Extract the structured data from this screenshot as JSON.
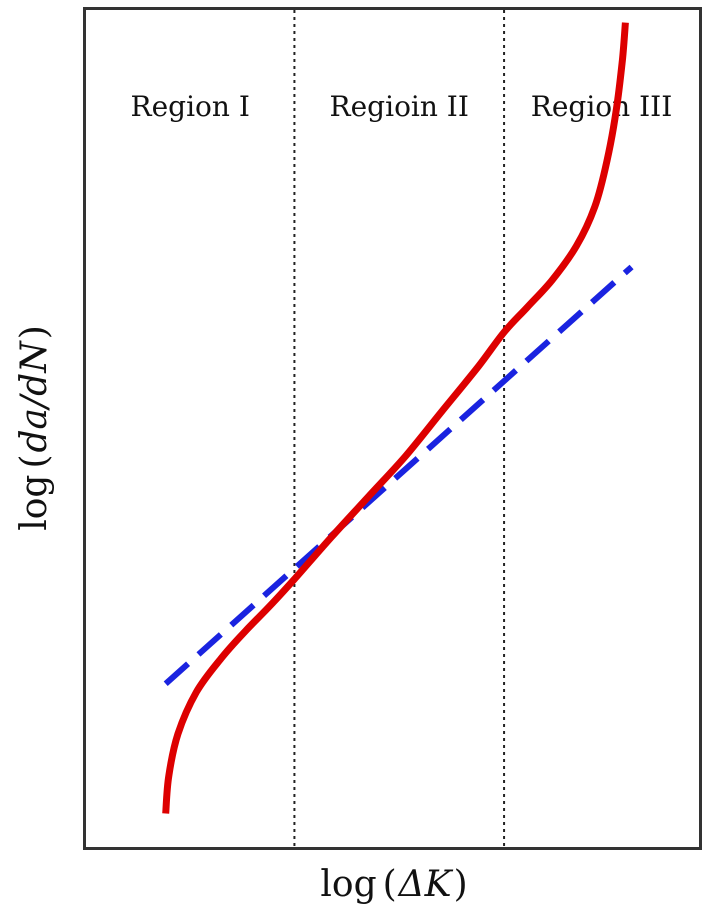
{
  "chart_data": {
    "type": "line",
    "title": "",
    "xlabel": {
      "prefix": "log",
      "open": "(",
      "symbol": "ΔK",
      "close": ")"
    },
    "ylabel": {
      "prefix": "log",
      "open": "(",
      "symbol": "da/dN",
      "close": ")"
    },
    "xlim": [
      0,
      1
    ],
    "ylim": [
      0,
      1
    ],
    "grid": false,
    "regions": [
      {
        "label": "Region I",
        "x_start": 0.0,
        "x_end": 0.34
      },
      {
        "label": "Regioin II",
        "x_start": 0.34,
        "x_end": 0.682
      },
      {
        "label": "Region III",
        "x_start": 0.682,
        "x_end": 1.0
      }
    ],
    "boundaries": [
      0.34,
      0.682
    ],
    "series": [
      {
        "kind": "curve",
        "color": "#dd0000",
        "style": "solid",
        "x": [
          0.13,
          0.135,
          0.15,
          0.18,
          0.22,
          0.26,
          0.3,
          0.34,
          0.4,
          0.46,
          0.52,
          0.58,
          0.64,
          0.682,
          0.72,
          0.76,
          0.8,
          0.83,
          0.85,
          0.865,
          0.875,
          0.88
        ],
        "y": [
          0.04,
          0.085,
          0.135,
          0.185,
          0.225,
          0.258,
          0.288,
          0.32,
          0.37,
          0.418,
          0.466,
          0.52,
          0.574,
          0.615,
          0.645,
          0.677,
          0.718,
          0.765,
          0.82,
          0.88,
          0.94,
          0.985
        ]
      },
      {
        "kind": "fit-line",
        "color": "#1a23e0",
        "style": "dashed",
        "x": [
          0.13,
          0.89
        ],
        "y": [
          0.195,
          0.693
        ]
      }
    ]
  }
}
